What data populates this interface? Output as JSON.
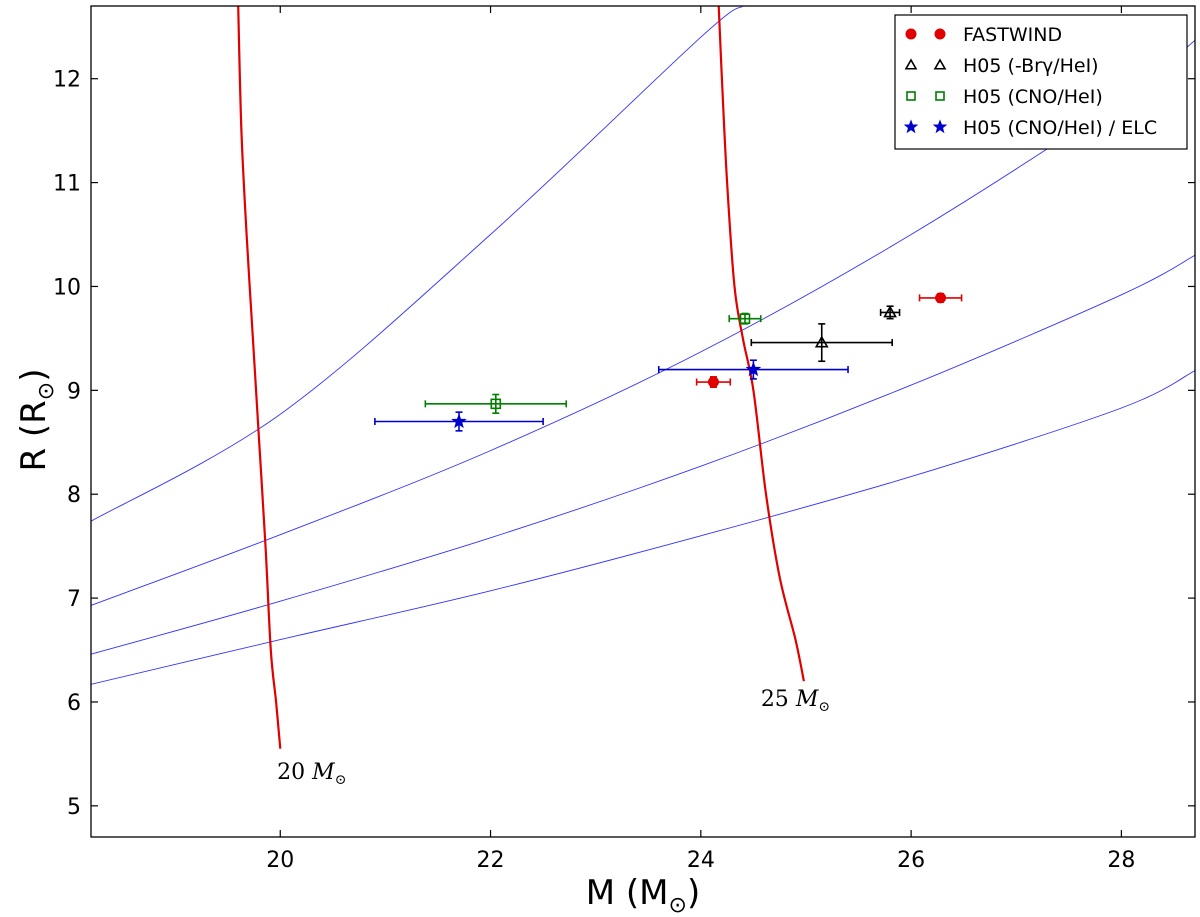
{
  "chart_data": {
    "type": "scatter",
    "xlabel": "M (M",
    "xlabel_sub": "⊙",
    "xlabel_close": ")",
    "ylabel": "R (R",
    "ylabel_sub": "⊙",
    "ylabel_close": ")",
    "xlim": [
      18.2,
      28.7
    ],
    "ylim": [
      4.7,
      12.7
    ],
    "xticks": [
      20,
      22,
      24,
      26,
      28
    ],
    "yticks": [
      5,
      6,
      7,
      8,
      9,
      10,
      11,
      12
    ],
    "grid": false,
    "legend_position": "top-right",
    "series": [
      {
        "name": "FASTWIND",
        "marker": "circle",
        "color": "#e00000",
        "points": [
          {
            "x": 24.12,
            "y": 9.08,
            "xerr": 0.16,
            "yerr": 0.05
          },
          {
            "x": 26.28,
            "y": 9.89,
            "xerr": 0.2,
            "yerr": 0.04
          }
        ]
      },
      {
        "name": "H05 (-Brγ/HeI)",
        "marker": "triangle",
        "color": "#000000",
        "points": [
          {
            "x": 25.15,
            "y": 9.46,
            "xerr": 0.67,
            "yerr": 0.18
          },
          {
            "x": 25.8,
            "y": 9.75,
            "xerr": 0.09,
            "yerr": 0.06
          }
        ]
      },
      {
        "name": "H05 (CNO/HeI)",
        "marker": "square",
        "color": "#007f00",
        "points": [
          {
            "x": 22.05,
            "y": 8.87,
            "xerr": 0.67,
            "yerr": 0.09
          },
          {
            "x": 24.42,
            "y": 9.69,
            "xerr": 0.15,
            "yerr": 0.05
          }
        ]
      },
      {
        "name": "H05 (CNO/HeI) / ELC",
        "marker": "star",
        "color": "#0000cc",
        "points": [
          {
            "x": 21.7,
            "y": 8.7,
            "xerr": 0.8,
            "yerr": 0.09
          },
          {
            "x": 24.5,
            "y": 9.2,
            "xerr": 0.9,
            "yerr": 0.09
          }
        ]
      }
    ],
    "tracks": [
      {
        "label": "20 ",
        "label_unit": "M",
        "label_sub": "⊙",
        "color": "#e00000",
        "points": [
          [
            19.6,
            12.7
          ],
          [
            19.63,
            11.5
          ],
          [
            19.68,
            10.5
          ],
          [
            19.74,
            9.5
          ],
          [
            19.8,
            8.5
          ],
          [
            19.86,
            7.5
          ],
          [
            19.91,
            6.5
          ],
          [
            19.96,
            6.0
          ],
          [
            20.0,
            5.55
          ]
        ],
        "label_at": [
          20.3,
          5.26
        ]
      },
      {
        "label": "25 ",
        "label_unit": "M",
        "label_sub": "⊙",
        "color": "#e00000",
        "points": [
          [
            24.17,
            12.7
          ],
          [
            24.2,
            12.0
          ],
          [
            24.25,
            11.0
          ],
          [
            24.32,
            10.0
          ],
          [
            24.4,
            9.5
          ],
          [
            24.5,
            9.0
          ],
          [
            24.62,
            8.0
          ],
          [
            24.75,
            7.2
          ],
          [
            24.9,
            6.6
          ],
          [
            24.98,
            6.2
          ]
        ],
        "label_at": [
          24.9,
          5.96
        ]
      }
    ],
    "reference_curves": {
      "color": "#3333ff",
      "curves": [
        {
          "points": [
            [
              18.2,
              7.74
            ],
            [
              20,
              8.77
            ],
            [
              22,
              10.5
            ],
            [
              24,
              12.4
            ],
            [
              24.4,
              12.7
            ]
          ]
        },
        {
          "points": [
            [
              18.2,
              6.93
            ],
            [
              20,
              7.61
            ],
            [
              22,
              8.42
            ],
            [
              24,
              9.37
            ],
            [
              26,
              10.5
            ],
            [
              28,
              11.8
            ],
            [
              28.7,
              12.37
            ]
          ]
        },
        {
          "points": [
            [
              18.2,
              6.46
            ],
            [
              20,
              6.97
            ],
            [
              22,
              7.58
            ],
            [
              24,
              8.27
            ],
            [
              26,
              9.05
            ],
            [
              28,
              9.92
            ],
            [
              28.7,
              10.3
            ]
          ]
        },
        {
          "points": [
            [
              18.2,
              6.17
            ],
            [
              20,
              6.6
            ],
            [
              22,
              7.07
            ],
            [
              24,
              7.6
            ],
            [
              26,
              8.17
            ],
            [
              28,
              8.83
            ],
            [
              28.7,
              9.19
            ]
          ]
        }
      ]
    }
  }
}
